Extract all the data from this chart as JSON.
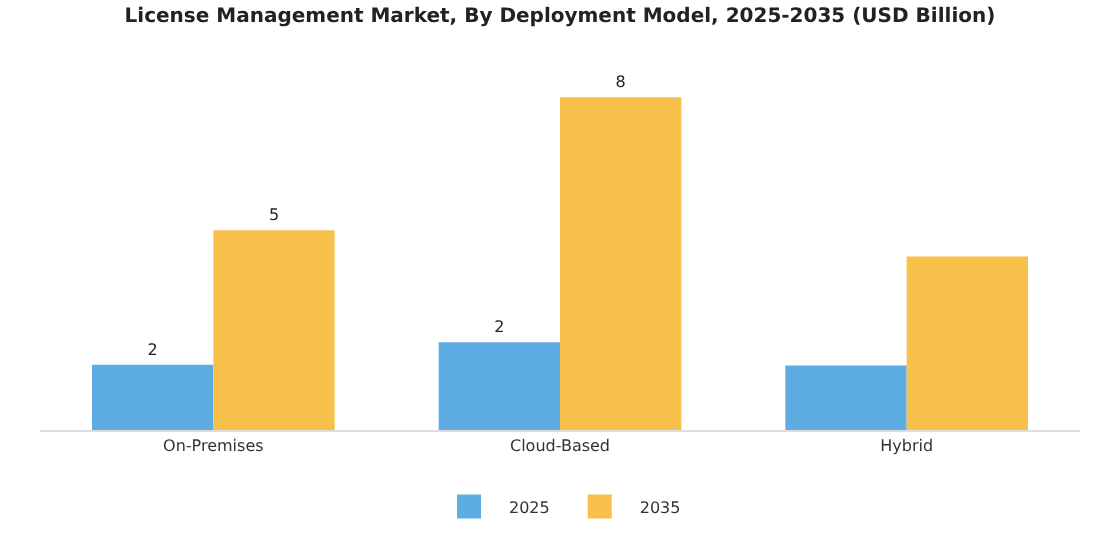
{
  "chart_data": {
    "type": "bar",
    "title": "License Management Market, By Deployment Model, 2025-2035 (USD Billion)",
    "categories": [
      "On-Premises",
      "Cloud-Based",
      "Hybrid"
    ],
    "series": [
      {
        "name": "2025",
        "color": "#5dade2",
        "values": [
          1.57,
          2.11,
          1.55
        ],
        "value_labels": [
          "2",
          "2",
          null
        ]
      },
      {
        "name": "2035",
        "color": "#f7c04a",
        "values": [
          4.8,
          8.0,
          4.17
        ],
        "value_labels": [
          "5",
          "8",
          null
        ]
      }
    ],
    "legend": "bottom"
  }
}
